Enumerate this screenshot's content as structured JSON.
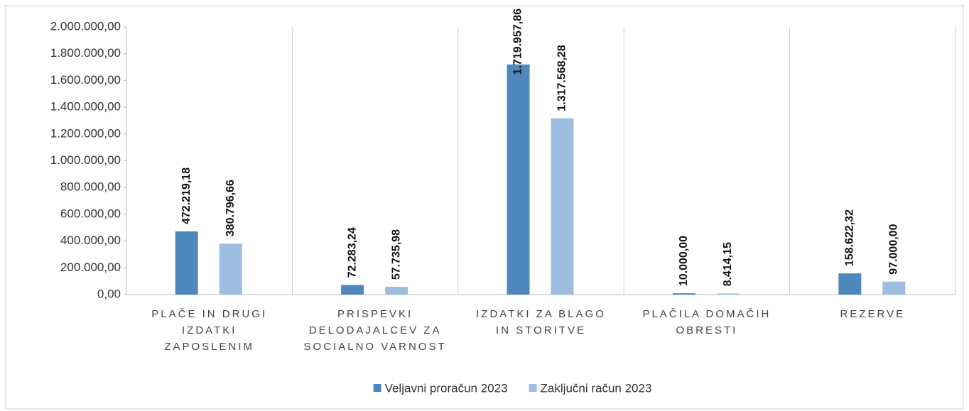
{
  "chart_data": {
    "type": "bar",
    "categories": [
      "PLAČE IN DRUGI IZDATKI ZAPOSLENIM",
      "PRISPEVKI DELODAJALCEV ZA SOCIALNO VARNOST",
      "IZDATKI ZA BLAGO IN STORITVE",
      "PLAČILA DOMAČIH OBRESTI",
      "REZERVE"
    ],
    "series": [
      {
        "name": "Veljavni proračun 2023",
        "color": "#4f88bd",
        "values": [
          472219.18,
          72283.24,
          1719957.86,
          10000.0,
          158622.32
        ],
        "value_labels": [
          "472.219,18",
          "72.283,24",
          "1.719.957,86",
          "10.000,00",
          "158.622,32"
        ]
      },
      {
        "name": "Zaključni račun 2023",
        "color": "#9dbde1",
        "values": [
          380796.66,
          57735.98,
          1317568.28,
          8414.15,
          97000.0
        ],
        "value_labels": [
          "380.796,66",
          "57.735,98",
          "1.317.568,28",
          "8.414,15",
          "97.000,00"
        ]
      }
    ],
    "ylim": [
      0,
      2000000
    ],
    "yticks": [
      {
        "value": 0,
        "label": "0,00"
      },
      {
        "value": 200000,
        "label": "200.000,00"
      },
      {
        "value": 400000,
        "label": "400.000,00"
      },
      {
        "value": 600000,
        "label": "600.000,00"
      },
      {
        "value": 800000,
        "label": "800.000,00"
      },
      {
        "value": 1000000,
        "label": "1.000.000,00"
      },
      {
        "value": 1200000,
        "label": "1.200.000,00"
      },
      {
        "value": 1400000,
        "label": "1.400.000,00"
      },
      {
        "value": 1600000,
        "label": "1.600.000,00"
      },
      {
        "value": 1800000,
        "label": "1.800.000,00"
      },
      {
        "value": 2000000,
        "label": "2.000.000,00"
      }
    ],
    "legend": "bottom"
  }
}
